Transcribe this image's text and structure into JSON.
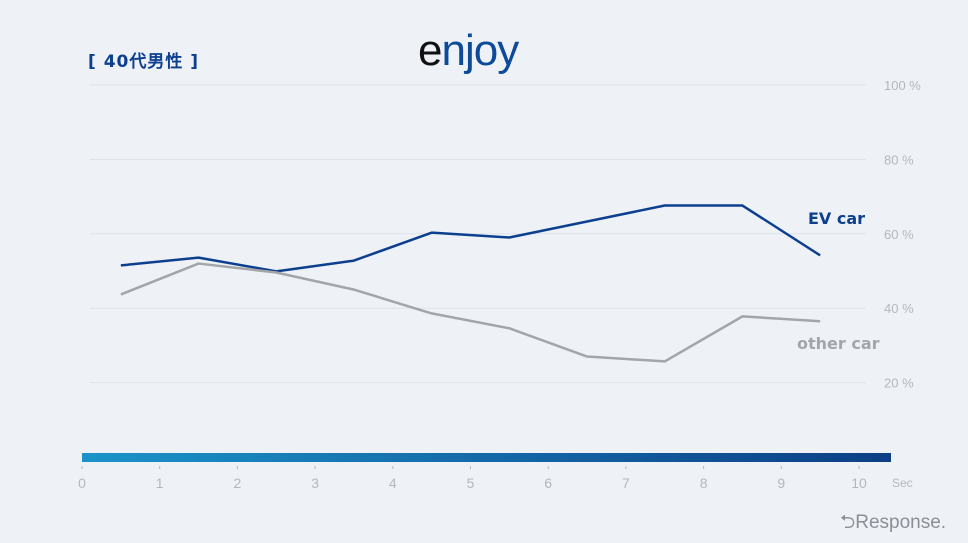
{
  "header": {
    "title": "[ 40代男性 ]",
    "logo": "enjoy",
    "watermark": "Response."
  },
  "chart_data": {
    "type": "line",
    "x_unit_label": "Sec",
    "x": [
      0.5,
      1.5,
      2.5,
      3.5,
      4.5,
      5.5,
      6.5,
      7.5,
      8.5,
      9.5
    ],
    "xlim": [
      0,
      10
    ],
    "xticks": [
      "0",
      "1",
      "2",
      "3",
      "4",
      "5",
      "6",
      "7",
      "8",
      "9",
      "10"
    ],
    "ylim": [
      0,
      100
    ],
    "yticks": [
      "20%",
      "40%",
      "60%",
      "80%",
      "100%"
    ],
    "grid": true,
    "series": [
      {
        "name": "EV car",
        "color": "#0d3f8f",
        "values": [
          51.5,
          53.6,
          49.9,
          52.8,
          60.3,
          59,
          63.3,
          67.6,
          67.6,
          54.2
        ]
      },
      {
        "name": "other car",
        "color": "#a3a5a8",
        "values": [
          43.7,
          52,
          49.6,
          45,
          38.6,
          34.6,
          27,
          25.7,
          37.8,
          36.5
        ]
      }
    ],
    "timeline_bar_colors": [
      "#1b93c9",
      "#0d3f85"
    ]
  }
}
